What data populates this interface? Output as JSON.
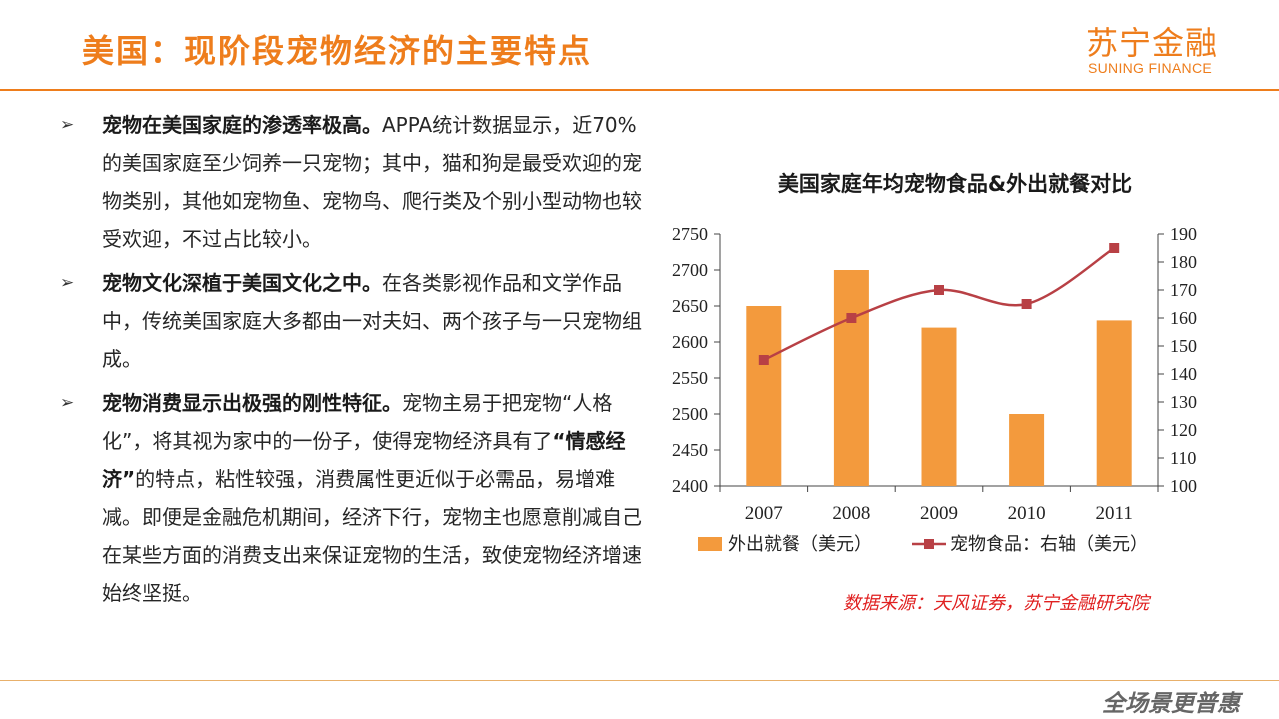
{
  "header": {
    "title": "美国：现阶段宠物经济的主要特点",
    "logo_cn": "苏宁金融",
    "logo_en": "SUNING FINANCE"
  },
  "bullets": [
    {
      "bold": "宠物在美国家庭的渗透率极高。",
      "text": "APPA统计数据显示，近70%的美国家庭至少饲养一只宠物；其中，猫和狗是最受欢迎的宠物类别，其他如宠物鱼、宠物鸟、爬行类及个别小型动物也较受欢迎，不过占比较小。"
    },
    {
      "bold": "宠物文化深植于美国文化之中。",
      "text": "在各类影视作品和文学作品中，传统美国家庭大多都由一对夫妇、两个孩子与一只宠物组成。"
    },
    {
      "bold": "宠物消费显示出极强的刚性特征。",
      "text_a": "宠物主易于把宠物“人格化”，将其视为家中的一份子，使得宠物经济具有了",
      "bold2": "“情感经济”",
      "text_b": "的特点，粘性较强，消费属性更近似于必需品，易增难减。即便是金融危机期间，经济下行，宠物主也愿意削减自己在某些方面的消费支出来保证宠物的生活，致使宠物经济增速始终坚挺。"
    }
  ],
  "chart_data": {
    "type": "bar+line",
    "title": "美国家庭年均宠物食品&外出就餐对比",
    "categories": [
      "2007",
      "2008",
      "2009",
      "2010",
      "2011"
    ],
    "series": [
      {
        "name": "外出就餐（美元）",
        "type": "bar",
        "axis": "left",
        "color": "#f39a3d",
        "values": [
          2650,
          2700,
          2620,
          2500,
          2630
        ]
      },
      {
        "name": "宠物食品：右轴（美元）",
        "type": "line",
        "axis": "right",
        "color": "#b84045",
        "values": [
          145,
          160,
          170,
          165,
          185
        ]
      }
    ],
    "y_left": {
      "min": 2400,
      "max": 2750,
      "step": 50
    },
    "y_right": {
      "min": 100,
      "max": 190,
      "step": 10
    },
    "legend_position": "bottom"
  },
  "footer": {
    "source": "数据来源：天风证券，苏宁金融研究院",
    "slogan": "全场景更普惠"
  }
}
